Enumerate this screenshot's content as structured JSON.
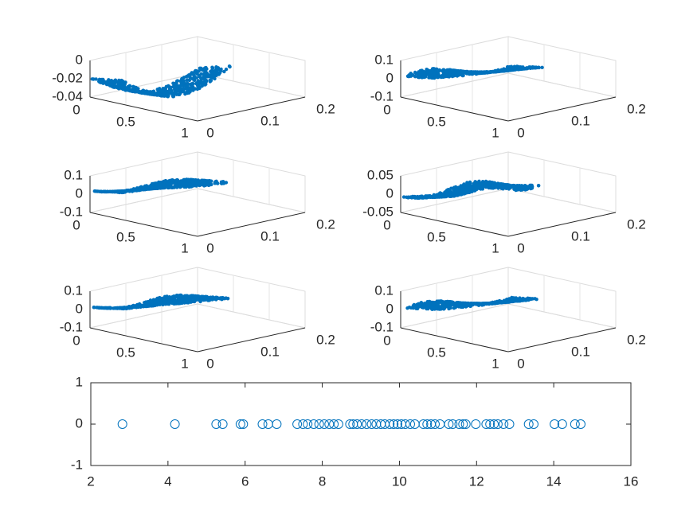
{
  "colors": {
    "marker": "#0072BD",
    "axis": "#262626",
    "grid": "#E6E6E6",
    "gridLine": "#DCDCDC"
  },
  "chart_data": [
    {
      "type": "scatter3d",
      "panel": "top-left",
      "title": "",
      "xlabel": "",
      "ylabel": "",
      "zlabel": "",
      "xlim": [
        0,
        1
      ],
      "ylim": [
        0,
        0.2
      ],
      "zlim": [
        -0.04,
        0
      ],
      "x_ticks": [
        "0",
        "0.5",
        "1"
      ],
      "y_ticks": [
        "0",
        "0.1",
        "0.2"
      ],
      "z_ticks": [
        "0",
        "-0.02",
        "-0.04"
      ],
      "grid": true,
      "description": "mode shape 1 (bowl-shaped truss deformation)"
    },
    {
      "type": "scatter3d",
      "panel": "top-right",
      "title": "",
      "xlabel": "",
      "ylabel": "",
      "zlabel": "",
      "xlim": [
        0,
        1
      ],
      "ylim": [
        0,
        0.2
      ],
      "zlim": [
        -0.1,
        0.1
      ],
      "x_ticks": [
        "0",
        "0.5",
        "1"
      ],
      "y_ticks": [
        "0",
        "0.1",
        "0.2"
      ],
      "z_ticks": [
        "0.1",
        "0",
        "-0.1"
      ],
      "grid": true
    },
    {
      "type": "scatter3d",
      "panel": "middle-left",
      "title": "",
      "xlabel": "",
      "ylabel": "",
      "zlabel": "",
      "xlim": [
        0,
        1
      ],
      "ylim": [
        0,
        0.2
      ],
      "zlim": [
        -0.1,
        0.1
      ],
      "x_ticks": [
        "0",
        "0.5",
        "1"
      ],
      "y_ticks": [
        "0",
        "0.1",
        "0.2"
      ],
      "z_ticks": [
        "0.1",
        "0",
        "-0.1"
      ],
      "grid": true
    },
    {
      "type": "scatter3d",
      "panel": "middle-right",
      "title": "",
      "xlabel": "",
      "ylabel": "",
      "zlabel": "",
      "xlim": [
        0,
        1
      ],
      "ylim": [
        0,
        0.2
      ],
      "zlim": [
        -0.05,
        0.05
      ],
      "x_ticks": [
        "0",
        "0.5",
        "1"
      ],
      "y_ticks": [
        "0",
        "0.1",
        "0.2"
      ],
      "z_ticks": [
        "0.05",
        "0",
        "-0.05"
      ],
      "grid": true
    },
    {
      "type": "scatter3d",
      "panel": "lower-left",
      "title": "",
      "xlabel": "",
      "ylabel": "",
      "zlabel": "",
      "xlim": [
        0,
        1
      ],
      "ylim": [
        0,
        0.2
      ],
      "zlim": [
        -0.1,
        0.1
      ],
      "x_ticks": [
        "0",
        "0.5",
        "1"
      ],
      "y_ticks": [
        "0",
        "0.1",
        "0.2"
      ],
      "z_ticks": [
        "0.1",
        "0",
        "-0.1"
      ],
      "grid": true
    },
    {
      "type": "scatter3d",
      "panel": "lower-right",
      "title": "",
      "xlabel": "",
      "ylabel": "",
      "zlabel": "",
      "xlim": [
        0,
        1
      ],
      "ylim": [
        0,
        0.2
      ],
      "zlim": [
        -0.1,
        0.1
      ],
      "x_ticks": [
        "0",
        "0.5",
        "1"
      ],
      "y_ticks": [
        "0",
        "0.1",
        "0.2"
      ],
      "z_ticks": [
        "0.1",
        "0",
        "-0.1"
      ],
      "grid": true
    },
    {
      "type": "scatter",
      "panel": "bottom",
      "title": "",
      "xlabel": "",
      "ylabel": "",
      "xlim": [
        2,
        16
      ],
      "ylim": [
        -1,
        1
      ],
      "x_ticks": [
        "2",
        "4",
        "6",
        "8",
        "10",
        "12",
        "14",
        "16"
      ],
      "y_ticks": [
        "1",
        "0",
        "-1"
      ],
      "marker": "open-circle",
      "grid": false,
      "x": [
        2.82,
        4.18,
        5.25,
        5.42,
        5.88,
        5.95,
        6.45,
        6.6,
        6.82,
        7.35,
        7.5,
        7.62,
        7.78,
        7.92,
        8.05,
        8.18,
        8.3,
        8.42,
        8.72,
        8.8,
        8.9,
        9.02,
        9.15,
        9.28,
        9.4,
        9.52,
        9.62,
        9.75,
        9.85,
        9.95,
        10.05,
        10.15,
        10.28,
        10.4,
        10.62,
        10.72,
        10.82,
        10.92,
        11.05,
        11.28,
        11.38,
        11.55,
        11.65,
        11.72,
        11.98,
        12.25,
        12.35,
        12.45,
        12.55,
        12.7,
        12.85,
        13.35,
        13.48,
        14.02,
        14.22,
        14.55,
        14.7
      ],
      "y": [
        0,
        0,
        0,
        0,
        0,
        0,
        0,
        0,
        0,
        0,
        0,
        0,
        0,
        0,
        0,
        0,
        0,
        0,
        0,
        0,
        0,
        0,
        0,
        0,
        0,
        0,
        0,
        0,
        0,
        0,
        0,
        0,
        0,
        0,
        0,
        0,
        0,
        0,
        0,
        0,
        0,
        0,
        0,
        0,
        0,
        0,
        0,
        0,
        0,
        0,
        0,
        0,
        0,
        0,
        0,
        0,
        0
      ]
    }
  ]
}
